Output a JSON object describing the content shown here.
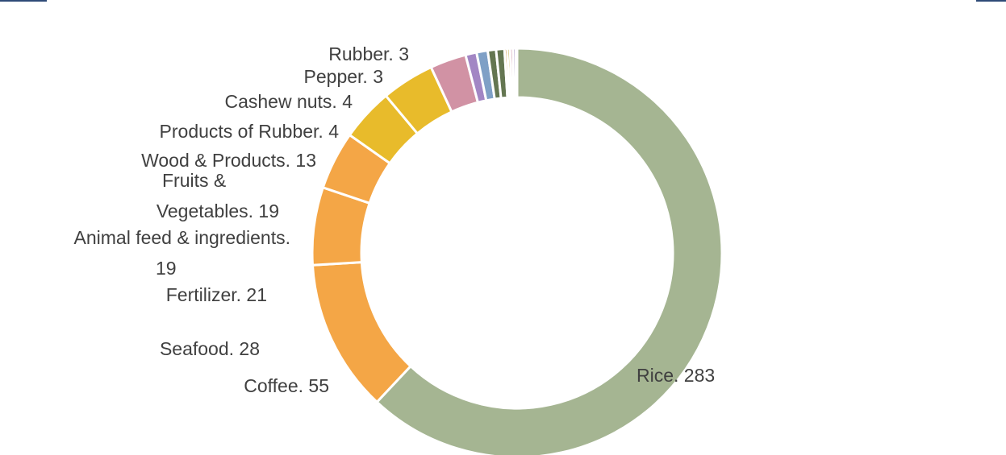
{
  "chart_data": {
    "type": "pie",
    "variant": "donut",
    "title": "",
    "legend": "none",
    "label_separator": ". ",
    "slices": [
      {
        "label": "Rice",
        "value": 283,
        "color": "#a5b592"
      },
      {
        "label": "Coffee",
        "value": 55,
        "color": "#f4a646"
      },
      {
        "label": "Seafood",
        "value": 28,
        "color": "#f4a646"
      },
      {
        "label": "Fertilizer",
        "value": 21,
        "color": "#f4a646"
      },
      {
        "label": "Animal feed & ingredients",
        "value": 19,
        "color": "#e8bb2b"
      },
      {
        "label": "Fruits & Vegetables",
        "value": 19,
        "color": "#e8bb2b"
      },
      {
        "label": "Wood & Products",
        "value": 13,
        "color": "#d192a4"
      },
      {
        "label": "Products of Rubber",
        "value": 4,
        "color": "#a286c4"
      },
      {
        "label": "Cashew nuts",
        "value": 4,
        "color": "#7fa0c6"
      },
      {
        "label": "Pepper",
        "value": 3,
        "color": "#647651"
      },
      {
        "label": "Rubber",
        "value": 3,
        "color": "#647651"
      },
      {
        "label": "",
        "value": 1,
        "color": "#c77817"
      },
      {
        "label": "",
        "value": 1,
        "color": "#b89617"
      },
      {
        "label": "",
        "value": 1,
        "color": "#b2567a"
      },
      {
        "label": "",
        "value": 1,
        "color": "#6b4b99"
      },
      {
        "label": "",
        "value": 0.5,
        "color": "#2e4a77"
      }
    ]
  },
  "frame": {
    "accent": "#2e4a77"
  }
}
